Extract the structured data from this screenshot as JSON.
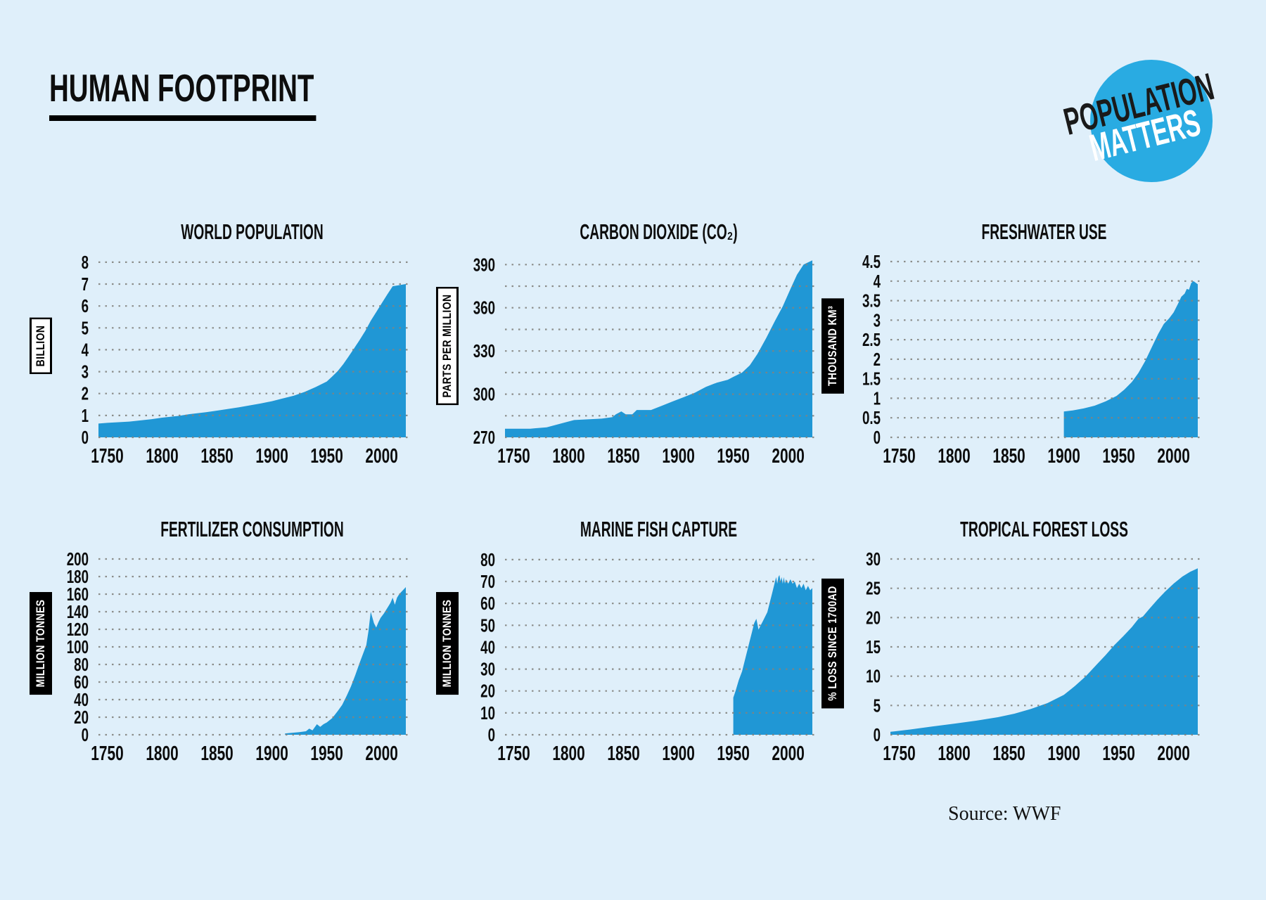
{
  "page": {
    "title": "HUMAN FOOTPRINT",
    "source": "Source: WWF",
    "bg_color": "#dfeffa",
    "area_color": "#2097d5",
    "grid_color": "#83837e",
    "text_color": "#0d0d0d"
  },
  "logo": {
    "line1": "POPULATION",
    "line2": "MATTERS",
    "circle_color": "#29abe2"
  },
  "chart_data": [
    {
      "type": "area",
      "title": "WORLD POPULATION",
      "unit": "BILLION",
      "unit_style": "light",
      "xlim": [
        1742,
        2022
      ],
      "ylim": [
        0,
        8.35
      ],
      "x_ticks": [
        1750,
        1800,
        1850,
        1900,
        1950,
        2000
      ],
      "y_grid": [
        0,
        1,
        2,
        3,
        4,
        5,
        6,
        7,
        8
      ],
      "y_labels": [
        [
          0,
          "0"
        ],
        [
          1,
          "1"
        ],
        [
          2,
          "2"
        ],
        [
          3,
          "3"
        ],
        [
          4,
          "4"
        ],
        [
          5,
          "5"
        ],
        [
          6,
          "6"
        ],
        [
          7,
          "7"
        ],
        [
          8,
          "8"
        ]
      ],
      "points": [
        [
          1742,
          0.63
        ],
        [
          1750,
          0.66
        ],
        [
          1770,
          0.72
        ],
        [
          1790,
          0.83
        ],
        [
          1800,
          0.9
        ],
        [
          1815,
          0.98
        ],
        [
          1825,
          1.06
        ],
        [
          1840,
          1.15
        ],
        [
          1850,
          1.22
        ],
        [
          1870,
          1.37
        ],
        [
          1890,
          1.55
        ],
        [
          1900,
          1.65
        ],
        [
          1910,
          1.78
        ],
        [
          1920,
          1.9
        ],
        [
          1930,
          2.08
        ],
        [
          1940,
          2.3
        ],
        [
          1950,
          2.55
        ],
        [
          1955,
          2.78
        ],
        [
          1960,
          3.03
        ],
        [
          1965,
          3.34
        ],
        [
          1970,
          3.7
        ],
        [
          1975,
          4.07
        ],
        [
          1980,
          4.45
        ],
        [
          1985,
          4.86
        ],
        [
          1990,
          5.32
        ],
        [
          1995,
          5.72
        ],
        [
          2000,
          6.12
        ],
        [
          2005,
          6.52
        ],
        [
          2010,
          6.9
        ],
        [
          2022,
          7.0
        ]
      ]
    },
    {
      "type": "area",
      "title": "CARBON DIOXIDE (CO₂)",
      "unit": "PARTS PER MILLION",
      "unit_style": "light",
      "xlim": [
        1742,
        2022
      ],
      "ylim": [
        270,
        397
      ],
      "x_ticks": [
        1750,
        1800,
        1850,
        1900,
        1950,
        2000
      ],
      "y_grid": [
        270,
        285,
        300,
        315,
        330,
        345,
        360,
        375,
        390
      ],
      "y_labels": [
        [
          270,
          "270"
        ],
        [
          300,
          "300"
        ],
        [
          330,
          "330"
        ],
        [
          360,
          "360"
        ],
        [
          390,
          "390"
        ]
      ],
      "points": [
        [
          1742,
          276
        ],
        [
          1765,
          276
        ],
        [
          1780,
          277
        ],
        [
          1795,
          280
        ],
        [
          1805,
          282
        ],
        [
          1830,
          283
        ],
        [
          1840,
          284
        ],
        [
          1843,
          286
        ],
        [
          1848,
          288
        ],
        [
          1852,
          286
        ],
        [
          1858,
          286
        ],
        [
          1862,
          289
        ],
        [
          1875,
          289
        ],
        [
          1885,
          292
        ],
        [
          1895,
          295
        ],
        [
          1905,
          298
        ],
        [
          1915,
          301
        ],
        [
          1925,
          305
        ],
        [
          1935,
          308
        ],
        [
          1945,
          310
        ],
        [
          1950,
          312
        ],
        [
          1958,
          315
        ],
        [
          1965,
          320
        ],
        [
          1972,
          328
        ],
        [
          1980,
          339
        ],
        [
          1988,
          351
        ],
        [
          1995,
          361
        ],
        [
          2002,
          373
        ],
        [
          2008,
          383
        ],
        [
          2014,
          390
        ],
        [
          2022,
          393
        ]
      ]
    },
    {
      "type": "area",
      "title": "FRESHWATER USE",
      "unit": "THOUSAND KM³",
      "unit_style": "dark",
      "xlim": [
        1742,
        2022
      ],
      "ylim": [
        0,
        4.68
      ],
      "x_ticks": [
        1750,
        1800,
        1850,
        1900,
        1950,
        2000
      ],
      "y_grid": [
        0,
        0.5,
        1,
        1.5,
        2,
        2.5,
        3,
        3.5,
        4,
        4.5
      ],
      "y_labels": [
        [
          0,
          "0"
        ],
        [
          0.5,
          "0.5"
        ],
        [
          1,
          "1"
        ],
        [
          1.5,
          "1.5"
        ],
        [
          2,
          "2"
        ],
        [
          2.5,
          "2.5"
        ],
        [
          3,
          "3"
        ],
        [
          3.5,
          "3.5"
        ],
        [
          4,
          "4"
        ],
        [
          4.5,
          "4.5"
        ]
      ],
      "points": [
        [
          1900,
          0.66
        ],
        [
          1908,
          0.69
        ],
        [
          1918,
          0.74
        ],
        [
          1928,
          0.81
        ],
        [
          1938,
          0.92
        ],
        [
          1948,
          1.06
        ],
        [
          1955,
          1.22
        ],
        [
          1962,
          1.42
        ],
        [
          1968,
          1.65
        ],
        [
          1974,
          1.95
        ],
        [
          1980,
          2.3
        ],
        [
          1986,
          2.65
        ],
        [
          1991,
          2.9
        ],
        [
          1996,
          3.05
        ],
        [
          2000,
          3.2
        ],
        [
          2004,
          3.42
        ],
        [
          2007,
          3.6
        ],
        [
          2010,
          3.68
        ],
        [
          2012,
          3.8
        ],
        [
          2014,
          3.78
        ],
        [
          2016,
          3.95
        ],
        [
          2018,
          4.0
        ],
        [
          2022,
          3.92
        ]
      ]
    },
    {
      "type": "area",
      "title": "FERTILIZER CONSUMPTION",
      "unit": "MILLION TONNES",
      "unit_style": "dark",
      "xlim": [
        1742,
        2022
      ],
      "ylim": [
        0,
        208
      ],
      "x_ticks": [
        1750,
        1800,
        1850,
        1900,
        1950,
        2000
      ],
      "y_grid": [
        0,
        20,
        40,
        60,
        80,
        100,
        120,
        140,
        160,
        180,
        200
      ],
      "y_labels": [
        [
          0,
          "0"
        ],
        [
          20,
          "20"
        ],
        [
          40,
          "40"
        ],
        [
          60,
          "60"
        ],
        [
          80,
          "80"
        ],
        [
          100,
          "100"
        ],
        [
          120,
          "120"
        ],
        [
          140,
          "140"
        ],
        [
          160,
          "160"
        ],
        [
          180,
          "180"
        ],
        [
          200,
          "200"
        ]
      ],
      "points": [
        [
          1912,
          1.5
        ],
        [
          1918,
          2.2
        ],
        [
          1925,
          3
        ],
        [
          1931,
          4
        ],
        [
          1934,
          7
        ],
        [
          1937,
          5
        ],
        [
          1941,
          12
        ],
        [
          1944,
          9
        ],
        [
          1947,
          12
        ],
        [
          1950,
          14
        ],
        [
          1955,
          19
        ],
        [
          1960,
          27
        ],
        [
          1964,
          34
        ],
        [
          1968,
          44
        ],
        [
          1972,
          55
        ],
        [
          1976,
          68
        ],
        [
          1980,
          82
        ],
        [
          1983,
          92
        ],
        [
          1986,
          102
        ],
        [
          1988,
          118
        ],
        [
          1990,
          140
        ],
        [
          1993,
          127
        ],
        [
          1995,
          122
        ],
        [
          1997,
          128
        ],
        [
          1999,
          133
        ],
        [
          2002,
          138
        ],
        [
          2005,
          144
        ],
        [
          2008,
          150
        ],
        [
          2010,
          156
        ],
        [
          2012,
          148
        ],
        [
          2014,
          156
        ],
        [
          2016,
          160
        ],
        [
          2019,
          164
        ],
        [
          2022,
          168
        ]
      ]
    },
    {
      "type": "area",
      "title": "MARINE FISH CAPTURE",
      "unit": "MILLION TONNES",
      "unit_style": "dark",
      "xlim": [
        1742,
        2022
      ],
      "ylim": [
        0,
        83.5
      ],
      "x_ticks": [
        1750,
        1800,
        1850,
        1900,
        1950,
        2000
      ],
      "y_grid": [
        0,
        10,
        20,
        30,
        40,
        50,
        60,
        70,
        80
      ],
      "y_labels": [
        [
          0,
          "0"
        ],
        [
          10,
          "10"
        ],
        [
          20,
          "20"
        ],
        [
          30,
          "30"
        ],
        [
          40,
          "40"
        ],
        [
          50,
          "50"
        ],
        [
          60,
          "60"
        ],
        [
          70,
          "70"
        ],
        [
          80,
          "80"
        ]
      ],
      "points": [
        [
          1950,
          17
        ],
        [
          1952,
          20
        ],
        [
          1955,
          25
        ],
        [
          1958,
          29
        ],
        [
          1961,
          35
        ],
        [
          1964,
          41
        ],
        [
          1967,
          47
        ],
        [
          1969,
          51
        ],
        [
          1971,
          53
        ],
        [
          1973,
          48
        ],
        [
          1975,
          50
        ],
        [
          1977,
          52
        ],
        [
          1979,
          54
        ],
        [
          1981,
          56
        ],
        [
          1983,
          60
        ],
        [
          1985,
          64
        ],
        [
          1987,
          68
        ],
        [
          1989,
          72
        ],
        [
          1990,
          69
        ],
        [
          1991,
          72
        ],
        [
          1992,
          73
        ],
        [
          1993,
          70
        ],
        [
          1994,
          72
        ],
        [
          1995,
          69
        ],
        [
          1996,
          72
        ],
        [
          1997,
          69
        ],
        [
          1998,
          71
        ],
        [
          2000,
          69
        ],
        [
          2002,
          71
        ],
        [
          2004,
          69
        ],
        [
          2006,
          70
        ],
        [
          2008,
          67
        ],
        [
          2010,
          69
        ],
        [
          2012,
          67
        ],
        [
          2014,
          69
        ],
        [
          2016,
          66
        ],
        [
          2018,
          68
        ],
        [
          2020,
          66
        ],
        [
          2022,
          67
        ]
      ]
    },
    {
      "type": "area",
      "title": "TROPICAL FOREST LOSS",
      "unit": "% LOSS SINCE 1700AD",
      "unit_style": "dark",
      "xlim": [
        1742,
        2022
      ],
      "ylim": [
        0,
        31.2
      ],
      "x_ticks": [
        1750,
        1800,
        1850,
        1900,
        1950,
        2000
      ],
      "y_grid": [
        0,
        5,
        10,
        15,
        20,
        25,
        30
      ],
      "y_labels": [
        [
          0,
          "0"
        ],
        [
          5,
          "5"
        ],
        [
          10,
          "10"
        ],
        [
          15,
          "15"
        ],
        [
          20,
          "20"
        ],
        [
          25,
          "25"
        ],
        [
          30,
          "30"
        ]
      ],
      "points": [
        [
          1742,
          0.5
        ],
        [
          1760,
          0.9
        ],
        [
          1780,
          1.4
        ],
        [
          1800,
          1.9
        ],
        [
          1820,
          2.4
        ],
        [
          1840,
          3.0
        ],
        [
          1855,
          3.6
        ],
        [
          1870,
          4.4
        ],
        [
          1885,
          5.4
        ],
        [
          1900,
          6.8
        ],
        [
          1910,
          8.3
        ],
        [
          1920,
          10.0
        ],
        [
          1930,
          12.0
        ],
        [
          1938,
          13.6
        ],
        [
          1946,
          15.3
        ],
        [
          1954,
          16.8
        ],
        [
          1962,
          18.4
        ],
        [
          1968,
          19.8
        ],
        [
          1972,
          20.2
        ],
        [
          1978,
          21.5
        ],
        [
          1985,
          23.0
        ],
        [
          1992,
          24.4
        ],
        [
          2000,
          25.8
        ],
        [
          2008,
          27.0
        ],
        [
          2015,
          27.8
        ],
        [
          2022,
          28.4
        ]
      ]
    }
  ]
}
